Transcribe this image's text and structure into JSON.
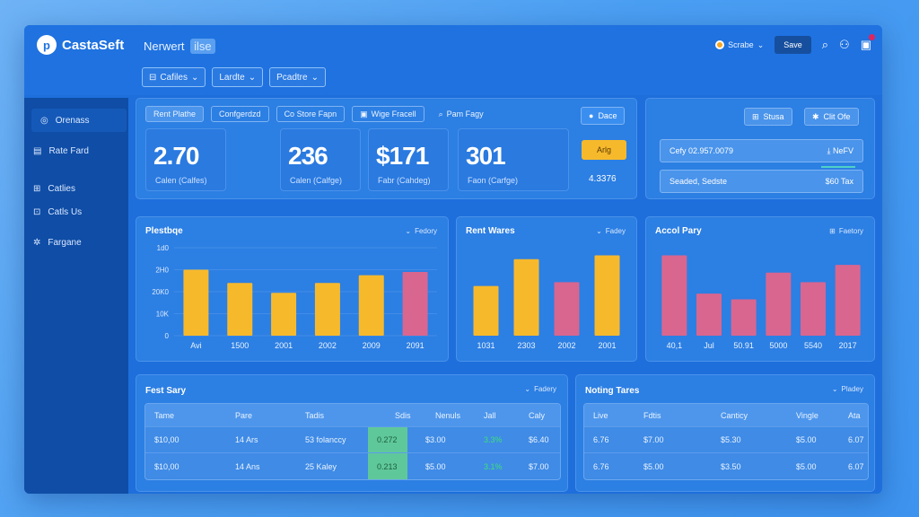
{
  "app": {
    "brand": "CastaSeft",
    "page_title": "Nerwert",
    "page_tag": "ilse"
  },
  "filters": [
    {
      "label": "Cafiles"
    },
    {
      "label": "Lardte"
    },
    {
      "label": "Pcadtre"
    }
  ],
  "topright": {
    "profile": "Scrabe",
    "save": "Save"
  },
  "sidebar": [
    {
      "label": "Orenass"
    },
    {
      "label": "Rate Fard"
    },
    {
      "label": "Catlies"
    },
    {
      "label": "Catls Us"
    },
    {
      "label": "Fargane"
    }
  ],
  "stats": {
    "tabs": [
      {
        "label": "Rent Plathe"
      },
      {
        "label": "Confgerdzd"
      },
      {
        "label": "Co Store Fapn"
      },
      {
        "label": "Wige Fracell"
      },
      {
        "label": "Pam Fagy"
      }
    ],
    "done": "Dace",
    "kpis": [
      {
        "value": "2.70",
        "label": "Calen (Calfes)"
      },
      {
        "value": "236",
        "label": "Calen (Calfge)"
      },
      {
        "value": "$171",
        "label": "Fabr (Cahdeg)"
      },
      {
        "value": "301",
        "label": "Faon (Carfge)"
      }
    ],
    "alert": "Arlg",
    "side_value": "4.3376"
  },
  "right_panel": {
    "btn1": "Stusa",
    "btn2": "Clit Ofe",
    "row1": {
      "left": "Cefy 02.957.0079",
      "right": "NeFV"
    },
    "row2": {
      "left": "Seaded, Sedste",
      "right": "$60 Tax"
    }
  },
  "charts": {
    "c1": {
      "title": "Plestbqe",
      "action": "Fedory"
    },
    "c2": {
      "title": "Rent Wares",
      "action": "Fadey"
    },
    "c3": {
      "title": "Accol Pary",
      "action": "Faetory"
    }
  },
  "chart_data": [
    {
      "type": "bar",
      "title": "Plestbqe",
      "categories": [
        "Avi",
        "1500",
        "2001",
        "2002",
        "2009",
        "2091"
      ],
      "values": [
        3000,
        2400,
        1950,
        2400,
        2750,
        2900
      ],
      "colors": [
        "#f7b92c",
        "#f7b92c",
        "#f7b92c",
        "#f7b92c",
        "#f7b92c",
        "#d9668f"
      ],
      "ylim": [
        0,
        4000
      ],
      "yticks": [
        "0",
        "10K",
        "20K0",
        "2H0",
        "1d0"
      ]
    },
    {
      "type": "bar",
      "title": "Rent Wares",
      "categories": [
        "1031",
        "2303",
        "2002",
        "2001"
      ],
      "values": [
        2600,
        4000,
        2800,
        4200
      ],
      "colors": [
        "#f7b92c",
        "#f7b92c",
        "#d9668f",
        "#f7b92c"
      ],
      "ylim": [
        0,
        4600
      ]
    },
    {
      "type": "bar",
      "title": "Accol Pary",
      "categories": [
        "40,1",
        "Jul",
        "50.91",
        "5000",
        "5540",
        "2017"
      ],
      "values": [
        4200,
        2200,
        1900,
        3300,
        2800,
        3700
      ],
      "colors": [
        "#d9668f",
        "#d9668f",
        "#d9668f",
        "#d9668f",
        "#d9668f",
        "#d9668f"
      ],
      "ylim": [
        0,
        4600
      ]
    }
  ],
  "table1": {
    "title": "Fest Sary",
    "action": "Fadery",
    "headers": [
      "Tame",
      "Pare",
      "Tadis",
      "Sdis",
      "Nenuls",
      "Jall",
      "Caly"
    ],
    "rows": [
      [
        "$10,00",
        "14 Ars",
        "53 folanccy",
        "0.272",
        "$3.00",
        "3.3%",
        "$6.40"
      ],
      [
        "$10,00",
        "14 Ans",
        "25 Kaley",
        "0.213",
        "$5.00",
        "3.1%",
        "$7.00"
      ]
    ]
  },
  "table2": {
    "title": "Noting Tares",
    "action": "Pladey",
    "headers": [
      "Live",
      "Fdtis",
      "Canticy",
      "Vingle",
      "Ata"
    ],
    "rows": [
      [
        "6.76",
        "$7.00",
        "$5.30",
        "$5.00",
        "6.07"
      ],
      [
        "6.76",
        "$5.00",
        "$3.50",
        "$5.00",
        "6.07"
      ]
    ]
  }
}
